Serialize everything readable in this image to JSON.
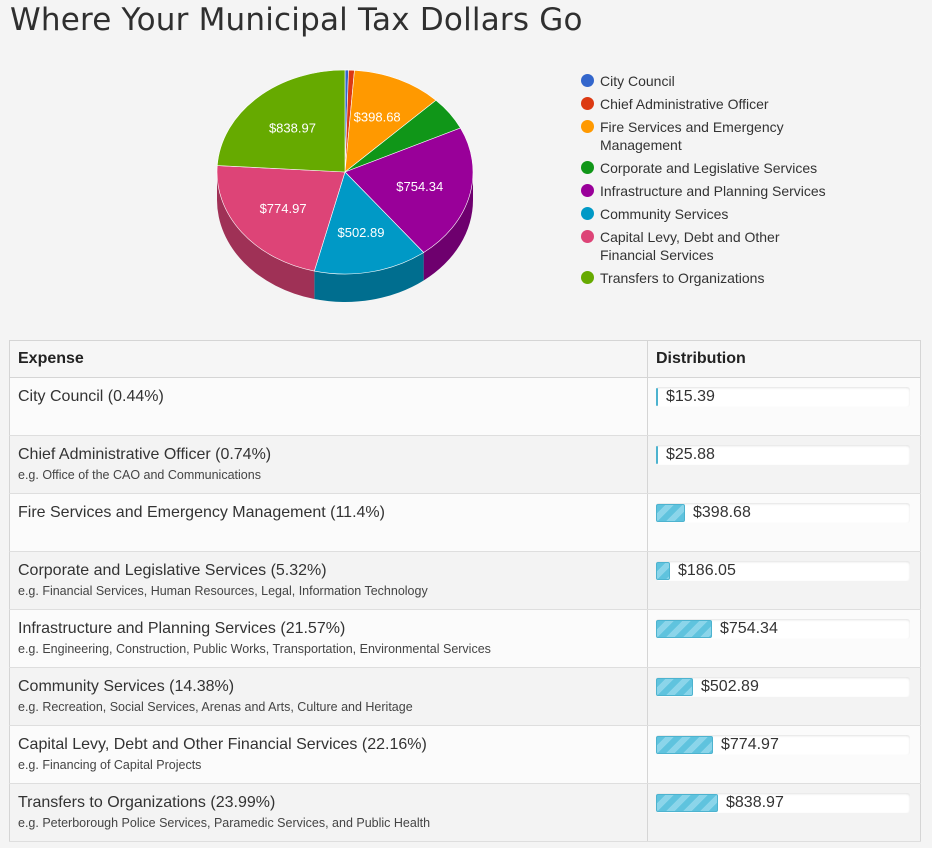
{
  "title": "Where Your Municipal Tax Dollars Go",
  "chart_data": {
    "type": "pie",
    "title": "Where Your Municipal Tax Dollars Go",
    "slices": [
      {
        "label": "City Council",
        "value": 15.39,
        "color": "#3366cc",
        "data_label": ""
      },
      {
        "label": "Chief Administrative Officer",
        "value": 25.88,
        "color": "#dc3912",
        "data_label": ""
      },
      {
        "label": "Fire Services and Emergency Management",
        "value": 398.68,
        "color": "#ff9900",
        "data_label": "$398.68"
      },
      {
        "label": "Corporate and Legislative Services",
        "value": 186.05,
        "color": "#109618",
        "data_label": ""
      },
      {
        "label": "Infrastructure and Planning Services",
        "value": 754.34,
        "color": "#990099",
        "data_label": "$754.34"
      },
      {
        "label": "Community Services",
        "value": 502.89,
        "color": "#0099c6",
        "data_label": "$502.89"
      },
      {
        "label": "Capital Levy, Debt and Other Financial Services",
        "value": 774.97,
        "color": "#dd4477",
        "data_label": "$774.97"
      },
      {
        "label": "Transfers to Organizations",
        "value": 838.97,
        "color": "#66aa00",
        "data_label": "$838.97"
      }
    ],
    "legend_position": "right"
  },
  "table": {
    "headers": {
      "expense": "Expense",
      "distribution": "Distribution"
    },
    "max_value": 838.97,
    "rows": [
      {
        "name": "City Council (0.44%)",
        "desc": "",
        "amount": "$15.39",
        "value": 15.39
      },
      {
        "name": "Chief Administrative Officer (0.74%)",
        "desc": "e.g. Office of the CAO and Communications",
        "amount": "$25.88",
        "value": 25.88
      },
      {
        "name": "Fire Services and Emergency Management (11.4%)",
        "desc": "",
        "amount": "$398.68",
        "value": 398.68
      },
      {
        "name": "Corporate and Legislative Services (5.32%)",
        "desc": "e.g. Financial Services, Human Resources, Legal, Information Technology",
        "amount": "$186.05",
        "value": 186.05
      },
      {
        "name": "Infrastructure and Planning Services (21.57%)",
        "desc": "e.g. Engineering, Construction, Public Works, Transportation, Environmental Services",
        "amount": "$754.34",
        "value": 754.34
      },
      {
        "name": "Community Services (14.38%)",
        "desc": "e.g. Recreation, Social Services, Arenas and Arts, Culture and Heritage",
        "amount": "$502.89",
        "value": 502.89
      },
      {
        "name": "Capital Levy, Debt and Other Financial Services (22.16%)",
        "desc": "e.g. Financing of Capital Projects",
        "amount": "$774.97",
        "value": 774.97
      },
      {
        "name": "Transfers to Organizations (23.99%)",
        "desc": "e.g. Peterborough Police Services, Paramedic Services, and Public Health",
        "amount": "$838.97",
        "value": 838.97
      }
    ]
  }
}
